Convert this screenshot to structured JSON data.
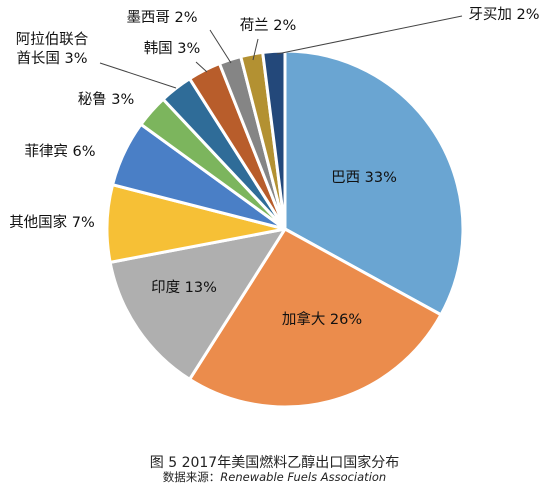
{
  "chart_data": {
    "type": "pie",
    "start_angle_deg": 0,
    "direction": "clockwise",
    "slices": [
      {
        "label": "巴西",
        "value": 33,
        "display": "33%",
        "color": "#6aa5d2"
      },
      {
        "label": "加拿大",
        "value": 26,
        "display": "26%",
        "color": "#eb8c4c"
      },
      {
        "label": "印度",
        "value": 13,
        "display": "13%",
        "color": "#afafaf"
      },
      {
        "label": "其他国家",
        "value": 7,
        "display": "7%",
        "color": "#f6c036"
      },
      {
        "label": "菲律宾",
        "value": 6,
        "display": "6%",
        "color": "#4a7fc6"
      },
      {
        "label": "秘鲁",
        "value": 3,
        "display": "3%",
        "color": "#7cb55d"
      },
      {
        "label": "阿拉伯联合酋长国",
        "value": 3,
        "display": "3%",
        "color": "#2f6c98"
      },
      {
        "label": "韩国",
        "value": 3,
        "display": "3%",
        "color": "#b85d2b"
      },
      {
        "label": "墨西哥",
        "value": 2,
        "display": "2%",
        "color": "#858585"
      },
      {
        "label": "荷兰",
        "value": 2,
        "display": "2%",
        "color": "#b39132"
      },
      {
        "label": "牙买加",
        "value": 2,
        "display": "2%",
        "color": "#23487a"
      }
    ],
    "legend": "none"
  },
  "caption": {
    "title": "图 5 2017年美国燃料乙醇出口国家分布",
    "source_prefix": "数据来源：",
    "source_name": "Renewable Fuels Association"
  }
}
